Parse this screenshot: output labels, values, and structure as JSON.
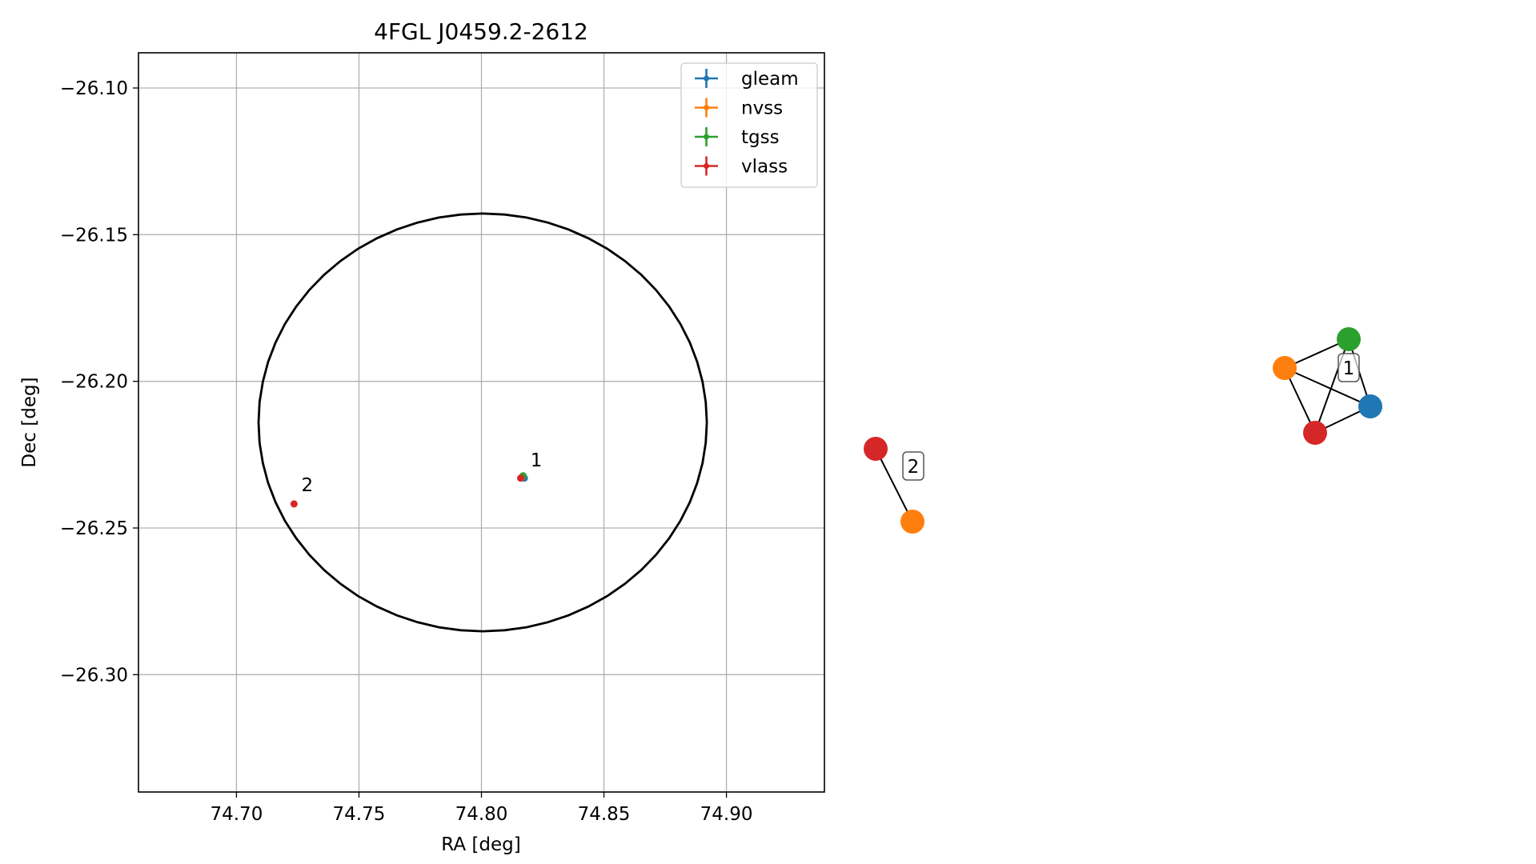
{
  "chart_data": [
    {
      "type": "scatter",
      "title": "4FGL J0459.2-2612",
      "xlabel": "RA [deg]",
      "ylabel": "Dec [deg]",
      "xlim": [
        74.66,
        74.94
      ],
      "ylim": [
        -26.34,
        -26.088
      ],
      "xticks": [
        74.7,
        74.75,
        74.8,
        74.85,
        74.9
      ],
      "xtick_labels": [
        "74.70",
        "74.75",
        "74.80",
        "74.85",
        "74.90"
      ],
      "yticks": [
        -26.1,
        -26.15,
        -26.2,
        -26.25,
        -26.3
      ],
      "ytick_labels": [
        "−26.10",
        "−26.15",
        "−26.20",
        "−26.25",
        "−26.30"
      ],
      "grid": true,
      "legend_position": "top-right",
      "series": [
        {
          "name": "gleam",
          "color": "#1f77b4",
          "points": [
            {
              "x": 74.8175,
              "y": -26.233
            }
          ]
        },
        {
          "name": "nvss",
          "color": "#ff7f0e",
          "points": [
            {
              "x": 74.8165,
              "y": -26.2327
            }
          ]
        },
        {
          "name": "tgss",
          "color": "#2ca02c",
          "points": [
            {
              "x": 74.817,
              "y": -26.2322
            }
          ]
        },
        {
          "name": "vlass",
          "color": "#d62728",
          "points": [
            {
              "x": 74.816,
              "y": -26.233
            },
            {
              "x": 74.7235,
              "y": -26.2418
            }
          ]
        }
      ],
      "annotations": [
        {
          "text": "1",
          "x": 74.82,
          "y": -26.229
        },
        {
          "text": "2",
          "x": 74.7265,
          "y": -26.2375
        }
      ],
      "ellipse": {
        "center": [
          74.8005,
          -26.214
        ],
        "ra_semi": 0.0915,
        "dec_semi": 0.0712,
        "color": "#000000"
      }
    }
  ],
  "graph": {
    "groups": [
      {
        "label": "1",
        "nodes": [
          {
            "id": "tgss",
            "color": "#2ca02c"
          },
          {
            "id": "nvss",
            "color": "#ff7f0e"
          },
          {
            "id": "gleam",
            "color": "#1f77b4"
          },
          {
            "id": "vlass",
            "color": "#d62728"
          }
        ]
      },
      {
        "label": "2",
        "nodes": [
          {
            "id": "vlass",
            "color": "#d62728"
          },
          {
            "id": "nvss",
            "color": "#ff7f0e"
          }
        ]
      }
    ]
  }
}
